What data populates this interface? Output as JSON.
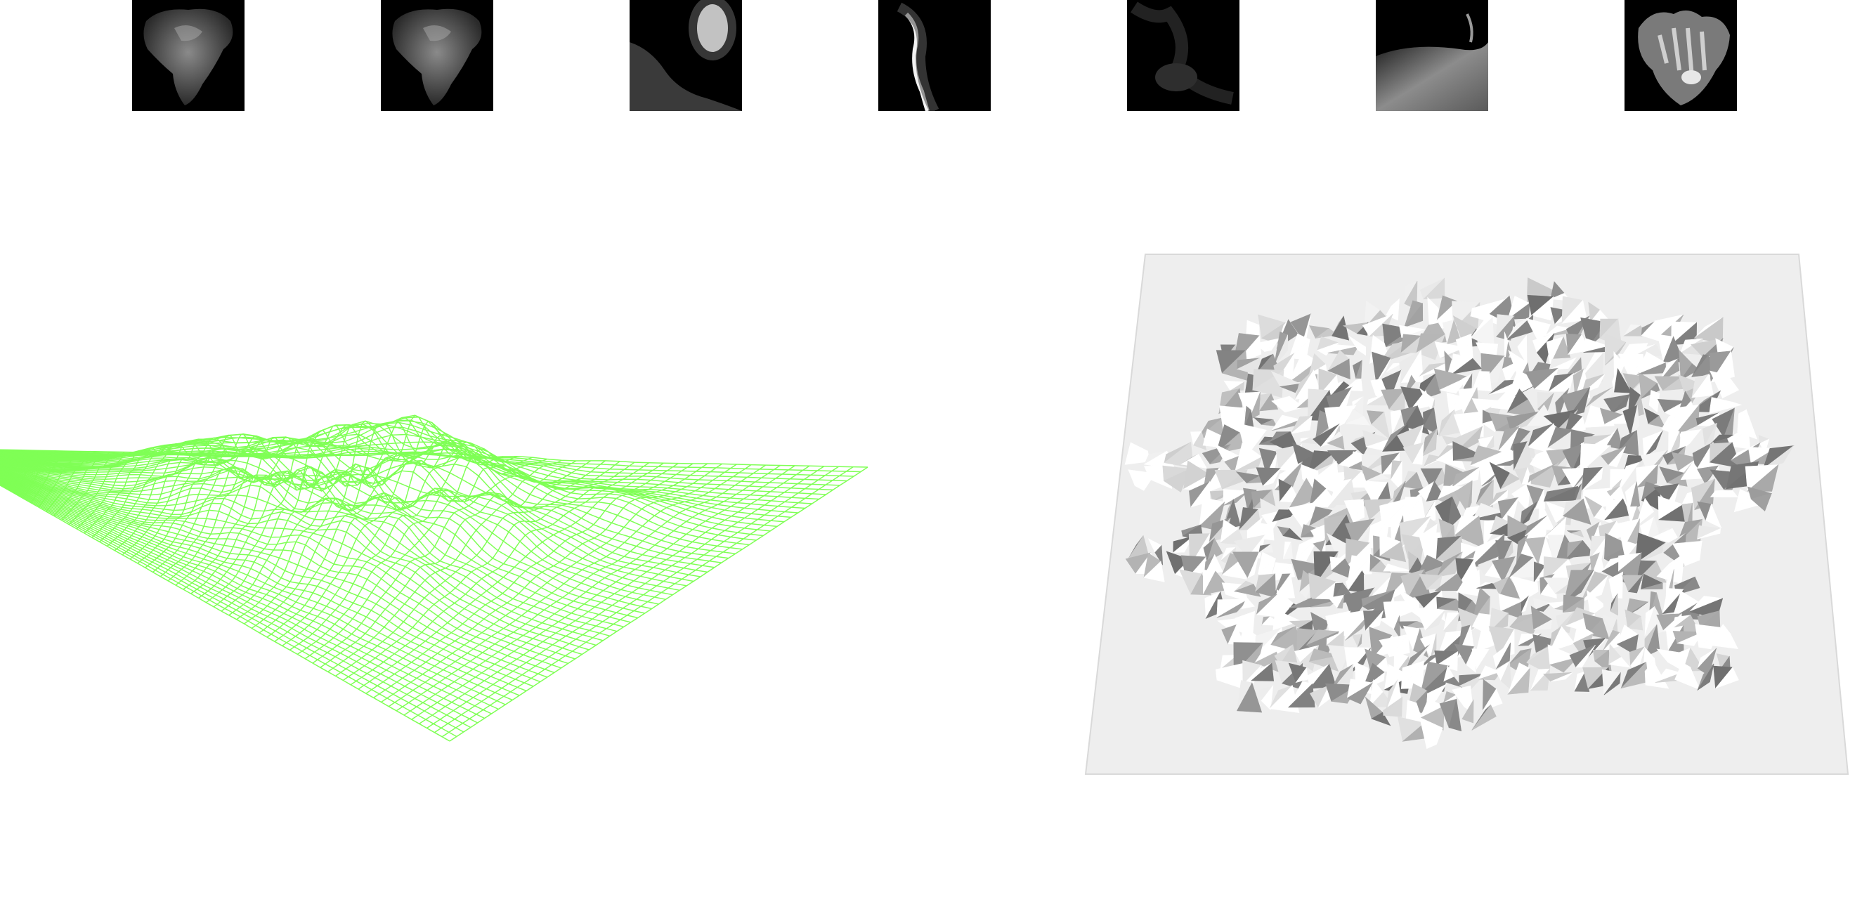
{
  "thumbnails": [
    {
      "name": "heightmap-thumb-1",
      "shape": "africa"
    },
    {
      "name": "heightmap-thumb-2",
      "shape": "africa"
    },
    {
      "name": "heightmap-thumb-3",
      "shape": "coast"
    },
    {
      "name": "heightmap-thumb-4",
      "shape": "ridge"
    },
    {
      "name": "heightmap-thumb-5",
      "shape": "dark"
    },
    {
      "name": "heightmap-thumb-6",
      "shape": "plain"
    },
    {
      "name": "heightmap-thumb-7",
      "shape": "island"
    }
  ],
  "colors": {
    "thumbnail_bg": "#000000",
    "wireframe": "#7fff55",
    "mesh_base": "#eeeeee",
    "mesh_light": "#ffffff",
    "mesh_dark": "#6a6a6a"
  },
  "views": {
    "wireframe": {
      "style": "wireframe"
    },
    "mesh": {
      "style": "shaded-mesh"
    }
  }
}
